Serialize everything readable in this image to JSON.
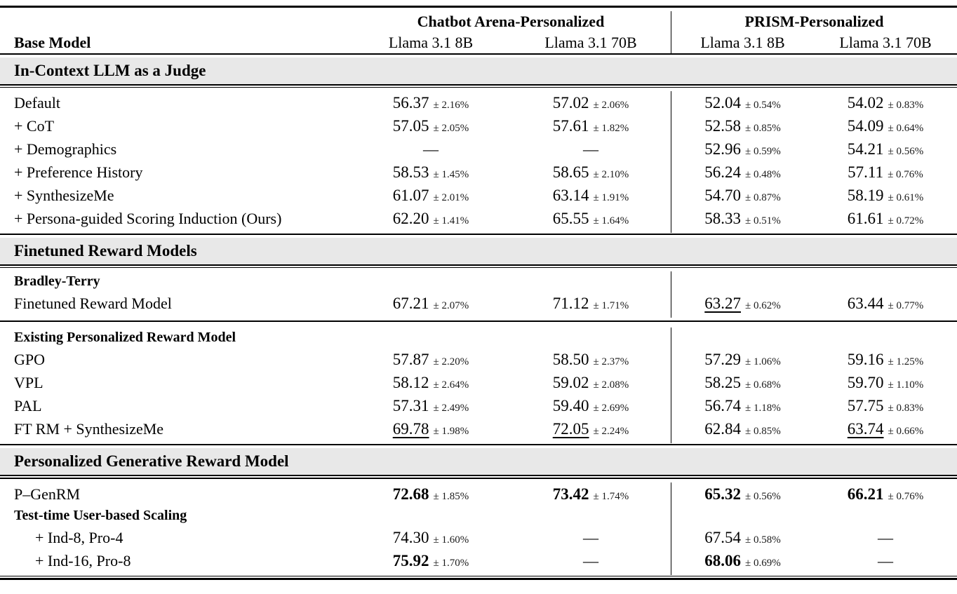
{
  "colors": {
    "band_bg": "#e8e8e8",
    "rule": "#000000",
    "text": "#000000",
    "stderr_text": "#1a1a1a",
    "page_bg": "#ffffff"
  },
  "table": {
    "header": {
      "base_model": "Base Model",
      "groups": [
        {
          "label": "Chatbot Arena-Personalized",
          "columns": [
            "Llama 3.1 8B",
            "Llama 3.1 70B"
          ]
        },
        {
          "label": "PRISM-Personalized",
          "columns": [
            "Llama 3.1 8B",
            "Llama 3.1 70B"
          ]
        }
      ]
    },
    "sections": [
      {
        "type": "band",
        "label": "In-Context LLM as a Judge"
      },
      {
        "type": "rows",
        "rows": [
          {
            "label": "Default",
            "style": "normal",
            "cells": [
              {
                "v": "56.37",
                "pm": "± 2.16%"
              },
              {
                "v": "57.02",
                "pm": "± 2.06%"
              },
              {
                "v": "52.04",
                "pm": "± 0.54%"
              },
              {
                "v": "54.02",
                "pm": "± 0.83%"
              }
            ]
          },
          {
            "label": "+ CoT",
            "style": "normal",
            "cells": [
              {
                "v": "57.05",
                "pm": "± 2.05%"
              },
              {
                "v": "57.61",
                "pm": "± 1.82%"
              },
              {
                "v": "52.58",
                "pm": "± 0.85%"
              },
              {
                "v": "54.09",
                "pm": "± 0.64%"
              }
            ]
          },
          {
            "label": "+ Demographics",
            "style": "normal",
            "cells": [
              {
                "dash": "—"
              },
              {
                "dash": "—"
              },
              {
                "v": "52.96",
                "pm": "± 0.59%"
              },
              {
                "v": "54.21",
                "pm": "± 0.56%"
              }
            ]
          },
          {
            "label": "+ Preference History",
            "style": "normal",
            "cells": [
              {
                "v": "58.53",
                "pm": "± 1.45%"
              },
              {
                "v": "58.65",
                "pm": "± 2.10%"
              },
              {
                "v": "56.24",
                "pm": "± 0.48%"
              },
              {
                "v": "57.11",
                "pm": "± 0.76%"
              }
            ]
          },
          {
            "label": "+ SynthesizeMe",
            "style": "normal",
            "cells": [
              {
                "v": "61.07",
                "pm": "± 2.01%"
              },
              {
                "v": "63.14",
                "pm": "± 1.91%"
              },
              {
                "v": "54.70",
                "pm": "± 0.87%"
              },
              {
                "v": "58.19",
                "pm": "± 0.61%"
              }
            ]
          },
          {
            "label": "+ Persona-guided Scoring Induction (Ours)",
            "style": "normal",
            "cells": [
              {
                "v": "62.20",
                "pm": "± 1.41%"
              },
              {
                "v": "65.55",
                "pm": "± 1.64%"
              },
              {
                "v": "58.33",
                "pm": "± 0.51%"
              },
              {
                "v": "61.61",
                "pm": "± 0.72%"
              }
            ]
          }
        ]
      },
      {
        "type": "band",
        "label": "Finetuned Reward Models"
      },
      {
        "type": "rows",
        "rows": [
          {
            "label": "Bradley-Terry",
            "style": "subheader",
            "cells": null
          },
          {
            "label": "Finetuned Reward Model",
            "style": "normal",
            "cells": [
              {
                "v": "67.21",
                "pm": "± 2.07%"
              },
              {
                "v": "71.12",
                "pm": "± 1.71%"
              },
              {
                "v": "63.27",
                "pm": "± 0.62%",
                "u": true
              },
              {
                "v": "63.44",
                "pm": "± 0.77%"
              }
            ]
          }
        ]
      },
      {
        "type": "rule"
      },
      {
        "type": "rows",
        "rows": [
          {
            "label": "Existing Personalized Reward Model",
            "style": "subheader",
            "cells": null
          },
          {
            "label": "GPO",
            "style": "normal",
            "cells": [
              {
                "v": "57.87",
                "pm": "± 2.20%"
              },
              {
                "v": "58.50",
                "pm": "± 2.37%"
              },
              {
                "v": "57.29",
                "pm": "± 1.06%"
              },
              {
                "v": "59.16",
                "pm": "± 1.25%"
              }
            ]
          },
          {
            "label": "VPL",
            "style": "normal",
            "cells": [
              {
                "v": "58.12",
                "pm": "± 2.64%"
              },
              {
                "v": "59.02",
                "pm": "± 2.08%"
              },
              {
                "v": "58.25",
                "pm": "± 0.68%"
              },
              {
                "v": "59.70",
                "pm": "± 1.10%"
              }
            ]
          },
          {
            "label": "PAL",
            "style": "normal",
            "cells": [
              {
                "v": "57.31",
                "pm": "± 2.49%"
              },
              {
                "v": "59.40",
                "pm": "± 2.69%"
              },
              {
                "v": "56.74",
                "pm": "± 1.18%"
              },
              {
                "v": "57.75",
                "pm": "± 0.83%"
              }
            ]
          },
          {
            "label": "FT RM + SynthesizeMe",
            "style": "normal",
            "cells": [
              {
                "v": "69.78",
                "pm": "± 1.98%",
                "u": true
              },
              {
                "v": "72.05",
                "pm": "± 2.24%",
                "u": true
              },
              {
                "v": "62.84",
                "pm": "± 0.85%"
              },
              {
                "v": "63.74",
                "pm": "± 0.66%",
                "u": true
              }
            ]
          }
        ]
      },
      {
        "type": "band",
        "label": "Personalized Generative Reward Model"
      },
      {
        "type": "rows",
        "rows": [
          {
            "label": "P–GenRM",
            "style": "normal",
            "cells": [
              {
                "v": "72.68",
                "pm": "± 1.85%",
                "b": true
              },
              {
                "v": "73.42",
                "pm": "± 1.74%",
                "b": true
              },
              {
                "v": "65.32",
                "pm": "± 0.56%",
                "b": true
              },
              {
                "v": "66.21",
                "pm": "± 0.76%",
                "b": true
              }
            ]
          },
          {
            "label": "Test-time User-based Scaling",
            "style": "subheader",
            "cells": null
          },
          {
            "label": "+ Ind-8, Pro-4",
            "style": "indent",
            "cells": [
              {
                "v": "74.30",
                "pm": "± 1.60%"
              },
              {
                "dash": "—"
              },
              {
                "v": "67.54",
                "pm": "± 0.58%"
              },
              {
                "dash": "—"
              }
            ]
          },
          {
            "label": "+ Ind-16, Pro-8",
            "style": "indent",
            "cells": [
              {
                "v": "75.92",
                "pm": "± 1.70%",
                "b": true
              },
              {
                "dash": "—"
              },
              {
                "v": "68.06",
                "pm": "± 0.69%",
                "b": true
              },
              {
                "dash": "—"
              }
            ]
          }
        ]
      }
    ]
  }
}
